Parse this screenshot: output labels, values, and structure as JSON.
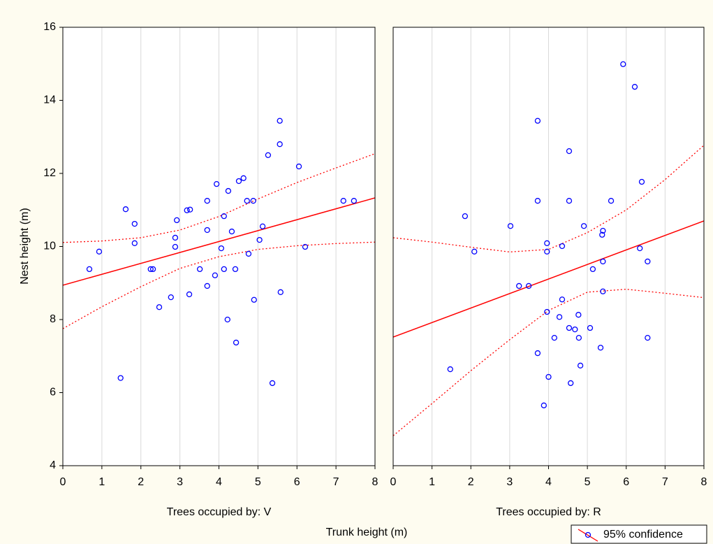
{
  "xlabel": "Trunk height (m)",
  "ylabel": "Nest height (m)",
  "legend": "95% confidence",
  "chart_data": [
    {
      "type": "scatter",
      "title": "Trees occupied by: V",
      "x": [
        0.68,
        0.93,
        1.48,
        1.61,
        1.84,
        1.84,
        2.25,
        2.31,
        2.47,
        2.77,
        2.88,
        2.88,
        2.92,
        3.18,
        3.26,
        3.24,
        3.51,
        3.7,
        3.7,
        3.7,
        3.9,
        3.94,
        4.06,
        4.13,
        4.13,
        4.22,
        4.24,
        4.33,
        4.42,
        4.44,
        4.51,
        4.63,
        4.72,
        4.76,
        4.88,
        4.9,
        5.04,
        5.12,
        5.26,
        5.37,
        5.56,
        5.56,
        5.58,
        6.05,
        6.21,
        7.19,
        7.46
      ],
      "series": [
        {
          "color": "#0000ff",
          "values": [
            9.38,
            9.86,
            6.4,
            11.02,
            10.62,
            10.09,
            9.38,
            9.38,
            8.34,
            8.61,
            10.24,
            9.99,
            10.72,
            10.99,
            11.01,
            8.69,
            9.38,
            11.25,
            10.45,
            8.92,
            9.21,
            11.71,
            9.95,
            10.83,
            9.38,
            8.0,
            11.52,
            10.41,
            9.38,
            7.37,
            11.79,
            11.87,
            11.25,
            9.8,
            11.25,
            8.54,
            10.18,
            10.55,
            12.5,
            6.26,
            13.44,
            12.8,
            8.75,
            12.19,
            9.99,
            11.25,
            11.25
          ]
        }
      ],
      "fit": {
        "color": "#ff0000",
        "x": [
          0,
          8
        ],
        "values": [
          8.94,
          11.33
        ]
      },
      "confidence": {
        "color": "#ff0000",
        "x": [
          0,
          1,
          2,
          3,
          4,
          5,
          6,
          7,
          8
        ],
        "upper": [
          10.11,
          10.15,
          10.24,
          10.45,
          10.82,
          11.3,
          11.75,
          12.15,
          12.54
        ],
        "lower": [
          7.75,
          8.35,
          8.9,
          9.4,
          9.72,
          9.92,
          10.02,
          10.08,
          10.12
        ]
      },
      "xlim": [
        0,
        8
      ],
      "xticks": [
        0,
        1,
        2,
        3,
        4,
        5,
        6,
        7,
        8
      ],
      "ylim": [
        4,
        16
      ],
      "yticks": [
        4,
        6,
        8,
        10,
        12,
        14,
        16
      ],
      "grid": true
    },
    {
      "type": "scatter",
      "title": "Trees occupied by: R",
      "x": [
        1.47,
        1.85,
        2.09,
        3.02,
        3.24,
        3.49,
        3.72,
        3.72,
        3.72,
        3.88,
        3.96,
        3.96,
        3.96,
        4.0,
        4.15,
        4.28,
        4.35,
        4.35,
        4.53,
        4.53,
        4.53,
        4.57,
        4.68,
        4.77,
        4.78,
        4.82,
        4.91,
        5.07,
        5.14,
        5.34,
        5.38,
        5.4,
        5.4,
        5.4,
        5.61,
        5.92,
        6.22,
        6.35,
        6.4,
        6.55,
        6.55
      ],
      "series": [
        {
          "color": "#0000ff",
          "values": [
            6.64,
            10.83,
            9.86,
            10.56,
            8.92,
            8.92,
            7.08,
            13.44,
            11.25,
            5.65,
            9.86,
            10.09,
            8.21,
            6.43,
            7.5,
            8.07,
            10.01,
            8.55,
            7.77,
            12.61,
            11.25,
            6.26,
            7.73,
            8.13,
            7.5,
            6.74,
            10.56,
            7.77,
            9.38,
            7.23,
            10.32,
            10.43,
            8.77,
            9.59,
            11.25,
            14.99,
            14.37,
            9.95,
            11.77,
            9.59,
            7.5
          ]
        }
      ],
      "fit": {
        "color": "#ff0000",
        "x": [
          0,
          8
        ],
        "values": [
          7.52,
          10.7
        ]
      },
      "confidence": {
        "color": "#ff0000",
        "x": [
          0,
          1,
          2,
          3,
          4,
          5,
          6,
          7,
          8
        ],
        "upper": [
          10.24,
          10.12,
          9.98,
          9.85,
          9.92,
          10.38,
          11.0,
          11.83,
          12.77
        ],
        "lower": [
          4.82,
          5.7,
          6.6,
          7.45,
          8.25,
          8.75,
          8.83,
          8.72,
          8.6
        ]
      },
      "xlim": [
        0,
        8
      ],
      "xticks": [
        0,
        1,
        2,
        3,
        4,
        5,
        6,
        7,
        8
      ],
      "ylim": [
        4,
        16
      ],
      "grid": true
    }
  ]
}
